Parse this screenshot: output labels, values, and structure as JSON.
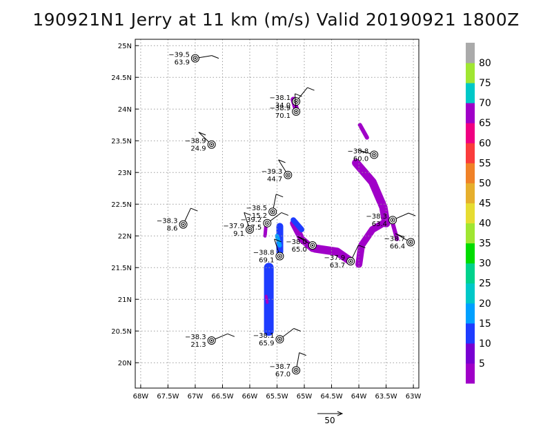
{
  "title": "190921N1 Jerry at 11 km (m/s) Valid 20190921 1800Z",
  "chart_data": {
    "type": "scatter",
    "x_ticks": [
      "68W",
      "67.5W",
      "67W",
      "66.5W",
      "66W",
      "65.5W",
      "65W",
      "64.5W",
      "64W",
      "63.5W",
      "63W"
    ],
    "y_ticks": [
      "20N",
      "20.5N",
      "21N",
      "21.5N",
      "22N",
      "22.5N",
      "23N",
      "23.5N",
      "24N",
      "24.5N",
      "25N"
    ],
    "xlim": [
      -68.1,
      -62.9
    ],
    "ylim": [
      19.6,
      25.1
    ],
    "grid": true,
    "colorbar": {
      "levels": [
        "5",
        "10",
        "15",
        "20",
        "25",
        "30",
        "35",
        "40",
        "45",
        "50",
        "55",
        "60",
        "65",
        "70",
        "75",
        "80"
      ],
      "colors": [
        "#a000c8",
        "#7800d2",
        "#1e3cff",
        "#00a0ff",
        "#00c8c8",
        "#00d28c",
        "#00dc00",
        "#a0e632",
        "#e6dc32",
        "#e6af2d",
        "#f08228",
        "#fa3c3c",
        "#f00082",
        "#a000c8",
        "#00c8c8",
        "#a0e632",
        "#aaaaaa"
      ]
    },
    "observations": [
      {
        "lon": -67.0,
        "lat": 24.8,
        "t": "−39.5",
        "v": "63.9"
      },
      {
        "lon": -65.15,
        "lat": 24.12,
        "t": "−38.1",
        "v": "34.0"
      },
      {
        "lon": -65.15,
        "lat": 23.96,
        "t": "−38.9",
        "v": "70.1"
      },
      {
        "lon": -66.7,
        "lat": 23.44,
        "t": "−38.9",
        "v": "24.9"
      },
      {
        "lon": -63.72,
        "lat": 23.28,
        "t": "−38.8",
        "v": "60.0"
      },
      {
        "lon": -65.3,
        "lat": 22.96,
        "t": "−39.3",
        "v": "44.7"
      },
      {
        "lon": -65.58,
        "lat": 22.38,
        "t": "−38.5",
        "v": "15.2"
      },
      {
        "lon": -65.68,
        "lat": 22.2,
        "t": "−39.2",
        "v": "17.5"
      },
      {
        "lon": -63.38,
        "lat": 22.25,
        "t": "−38.3",
        "v": "63.4"
      },
      {
        "lon": -67.22,
        "lat": 22.18,
        "t": "−38.3",
        "v": "8.6"
      },
      {
        "lon": -66.0,
        "lat": 22.1,
        "t": "−37.9",
        "v": "9.1"
      },
      {
        "lon": -63.05,
        "lat": 21.9,
        "t": "−38.7",
        "v": "66.4"
      },
      {
        "lon": -64.85,
        "lat": 21.85,
        "t": "−38.0",
        "v": "65.0"
      },
      {
        "lon": -65.45,
        "lat": 21.68,
        "t": "−38.8",
        "v": "69.1"
      },
      {
        "lon": -64.15,
        "lat": 21.6,
        "t": "−37.9",
        "v": "63.7"
      },
      {
        "lon": -66.7,
        "lat": 20.35,
        "t": "−38.3",
        "v": "21.3"
      },
      {
        "lon": -65.45,
        "lat": 20.37,
        "t": "−38.1",
        "v": "65.9"
      },
      {
        "lon": -65.15,
        "lat": 19.88,
        "t": "−38.7",
        "v": "67.0"
      }
    ],
    "reference_vector": "50"
  }
}
